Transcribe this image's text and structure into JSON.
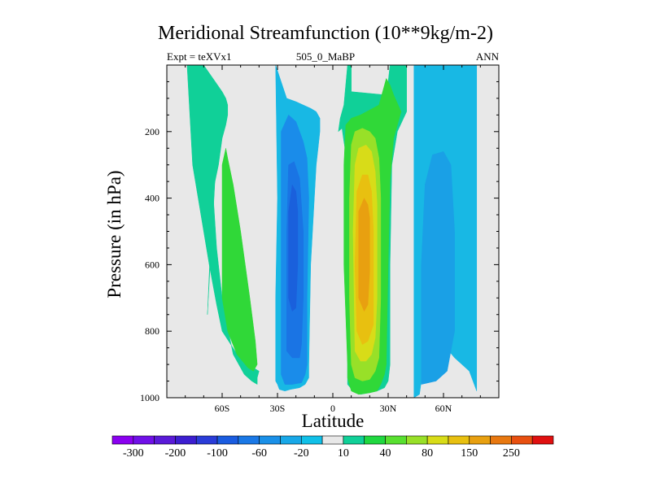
{
  "chart_data": {
    "type": "contour",
    "title": "Meridional Streamfunction (10**9kg/m-2)",
    "subtitle_left": "Expt = teXVx1",
    "subtitle_center": "505_0_MaBP",
    "subtitle_right": "ANN",
    "xlabel": "Latitude",
    "ylabel": "Pressure (in hPa)",
    "xlim": [
      -90,
      90
    ],
    "ylim": [
      1000,
      0
    ],
    "x_ticks": [
      {
        "value": -60,
        "label": "60S"
      },
      {
        "value": -30,
        "label": "30S"
      },
      {
        "value": 0,
        "label": "0"
      },
      {
        "value": 30,
        "label": "30N"
      },
      {
        "value": 60,
        "label": "60N"
      }
    ],
    "y_ticks": [
      {
        "value": 200,
        "label": "200"
      },
      {
        "value": 400,
        "label": "400"
      },
      {
        "value": 600,
        "label": "600"
      },
      {
        "value": 800,
        "label": "800"
      },
      {
        "value": 1000,
        "label": "1000"
      }
    ],
    "colorbar": {
      "colors": [
        "#8a00f0",
        "#7010e8",
        "#5a1ad8",
        "#3c1ed0",
        "#2a3cd8",
        "#1a5ce0",
        "#1a78e6",
        "#1a90e8",
        "#18a8e8",
        "#10c0e8",
        "#e8e8e8",
        "#10d098",
        "#20d840",
        "#58e030",
        "#98e028",
        "#d8dc18",
        "#e8c010",
        "#e8a010",
        "#e87810",
        "#e85010",
        "#e01010"
      ],
      "labels": [
        {
          "after_index": 0,
          "text": "-300"
        },
        {
          "after_index": 2,
          "text": "-200"
        },
        {
          "after_index": 4,
          "text": "-100"
        },
        {
          "after_index": 6,
          "text": "-60"
        },
        {
          "after_index": 8,
          "text": "-20"
        },
        {
          "after_index": 10,
          "text": "10"
        },
        {
          "after_index": 12,
          "text": "40"
        },
        {
          "after_index": 14,
          "text": "80"
        },
        {
          "after_index": 16,
          "text": "150"
        },
        {
          "after_index": 18,
          "text": "250"
        }
      ]
    },
    "cells": [
      {
        "name": "nh-polar-negative",
        "level": "-20",
        "color": "#18b8e4",
        "lat": [
          44,
          47,
          48,
          50,
          52,
          54,
          58,
          63,
          66,
          70,
          74,
          78,
          78,
          74,
          70,
          63,
          55,
          50,
          46,
          44,
          44
        ],
        "p": [
          1000,
          990,
          950,
          900,
          870,
          860,
          850,
          860,
          880,
          900,
          920,
          980,
          0,
          0,
          0,
          0,
          0,
          0,
          0,
          0,
          1000
        ]
      },
      {
        "name": "nh-polar-inner",
        "level": "-60",
        "color": "#1aa0e6",
        "lat": [
          48,
          56,
          62,
          66,
          66,
          64,
          60,
          54,
          50,
          48
        ],
        "p": [
          960,
          950,
          920,
          800,
          500,
          300,
          260,
          270,
          360,
          600
        ],
        "shift": true
      },
      {
        "name": "sh-cell-outer",
        "level": "-20",
        "color": "#18b8e4",
        "lat": [
          -31,
          -30,
          -29,
          -26,
          -23,
          -18,
          -15,
          -13,
          -13,
          -12,
          -10,
          -9,
          -8,
          -7,
          -7,
          -9,
          -12,
          -16,
          -20,
          -25,
          -31,
          -31,
          -30,
          -31
        ],
        "p": [
          950,
          960,
          975,
          980,
          975,
          970,
          960,
          940,
          900,
          600,
          400,
          300,
          250,
          200,
          160,
          140,
          130,
          120,
          110,
          100,
          0,
          0,
          400,
          700
        ]
      },
      {
        "name": "sh-cell-mid",
        "level": "-60",
        "color": "#1a8cea",
        "lat": [
          -28,
          -26,
          -22,
          -17,
          -15,
          -14,
          -14,
          -13,
          -14,
          -16,
          -20,
          -24,
          -28,
          -28
        ],
        "p": [
          930,
          960,
          960,
          955,
          930,
          900,
          700,
          400,
          280,
          230,
          170,
          150,
          200,
          600
        ]
      },
      {
        "name": "sh-cell-inner",
        "level": "-100",
        "color": "#1a74e4",
        "lat": [
          -25,
          -22,
          -18,
          -17,
          -16,
          -16,
          -18,
          -21,
          -24,
          -25
        ],
        "p": [
          860,
          880,
          880,
          840,
          700,
          500,
          340,
          290,
          300,
          500
        ]
      },
      {
        "name": "sh-cell-core",
        "level": "-100",
        "color": "#1a60dc",
        "lat": [
          -24,
          -22,
          -20,
          -19,
          -19,
          -20,
          -22,
          -24
        ],
        "p": [
          700,
          740,
          730,
          600,
          440,
          380,
          360,
          440
        ]
      },
      {
        "name": "nh-hadley-outer",
        "level": "10",
        "color": "#10d098",
        "lat": [
          8,
          11,
          15,
          20,
          24,
          28,
          30,
          31,
          31,
          32,
          35,
          40,
          40,
          34,
          31,
          30,
          31,
          29,
          10,
          10,
          8,
          6,
          4,
          3,
          5,
          6,
          8
        ],
        "p": [
          960,
          980,
          990,
          985,
          980,
          970,
          950,
          900,
          600,
          300,
          200,
          140,
          0,
          0,
          0,
          50,
          70,
          90,
          80,
          0,
          0,
          120,
          160,
          200,
          190,
          230,
          300
        ]
      },
      {
        "name": "nh-hadley-10",
        "level": "40",
        "color": "#30d838",
        "lat": [
          8,
          10,
          14,
          20,
          24,
          26,
          28,
          29,
          30,
          31,
          33,
          37,
          33,
          31,
          29,
          25,
          15,
          10,
          7,
          6,
          6,
          8
        ],
        "p": [
          940,
          980,
          990,
          985,
          980,
          960,
          930,
          900,
          600,
          350,
          220,
          140,
          90,
          60,
          40,
          120,
          150,
          160,
          180,
          300,
          600,
          900
        ]
      },
      {
        "name": "nh-hadley-40",
        "level": "80",
        "color": "#98e028",
        "lat": [
          10,
          12,
          16,
          20,
          23,
          25,
          26,
          26,
          25,
          23,
          20,
          16,
          12,
          10,
          9,
          9,
          10
        ],
        "p": [
          900,
          940,
          950,
          945,
          920,
          880,
          700,
          400,
          280,
          220,
          200,
          190,
          200,
          240,
          400,
          700,
          900
        ]
      },
      {
        "name": "nh-hadley-80",
        "level": "150",
        "color": "#d8dc18",
        "lat": [
          12,
          15,
          18,
          21,
          23,
          24,
          24,
          23,
          21,
          18,
          14,
          12,
          11,
          12
        ],
        "p": [
          860,
          890,
          890,
          870,
          820,
          700,
          420,
          320,
          260,
          240,
          250,
          300,
          500,
          860
        ]
      },
      {
        "name": "nh-hadley-150",
        "level": "150",
        "color": "#e8c010",
        "lat": [
          13,
          16,
          19,
          22,
          22,
          21,
          19,
          16,
          13,
          12,
          13
        ],
        "p": [
          800,
          840,
          830,
          780,
          500,
          380,
          330,
          330,
          380,
          600,
          800
        ]
      },
      {
        "name": "nh-hadley-core",
        "level": "250",
        "color": "#e8a010",
        "lat": [
          14,
          17,
          19,
          20,
          20,
          19,
          17,
          14,
          14
        ],
        "p": [
          700,
          740,
          720,
          620,
          460,
          420,
          400,
          440,
          700
        ]
      },
      {
        "name": "sh-polar-positive",
        "level": "10",
        "color": "#10d098",
        "lat": [
          -79,
          -70,
          -65,
          -60,
          -58,
          -57,
          -57,
          -58,
          -60,
          -62,
          -65,
          -63,
          -60,
          -57,
          -54,
          -48,
          -44,
          -41,
          -41,
          -40,
          -46,
          -53,
          -60,
          -63,
          -67,
          -76,
          -79
        ],
        "p": [
          0,
          0,
          40,
          80,
          100,
          120,
          150,
          180,
          220,
          300,
          380,
          550,
          700,
          790,
          870,
          930,
          950,
          960,
          940,
          920,
          900,
          860,
          800,
          720,
          600,
          300,
          0
        ]
      },
      {
        "name": "sh-polar-40",
        "level": "40",
        "color": "#30d838",
        "lat": [
          -60,
          -57,
          -52,
          -46,
          -43,
          -41,
          -42,
          -45,
          -50,
          -54,
          -57,
          -58,
          -60,
          -60
        ],
        "p": [
          700,
          800,
          870,
          910,
          920,
          900,
          830,
          700,
          500,
          360,
          280,
          250,
          300,
          500
        ]
      },
      {
        "name": "sh-polar-spike",
        "level": "10",
        "color": "#10d098",
        "lat": [
          -68,
          -66,
          -64,
          -63,
          -68
        ],
        "p": [
          750,
          500,
          300,
          260,
          750
        ]
      },
      {
        "name": "nh-pole-edge",
        "level": "-20",
        "color": "#10d098",
        "lat": [
          -40,
          -39,
          -38,
          -36,
          -38,
          -40
        ],
        "p": [
          950,
          930,
          800,
          400,
          300,
          950
        ],
        "hidden": true
      }
    ]
  }
}
